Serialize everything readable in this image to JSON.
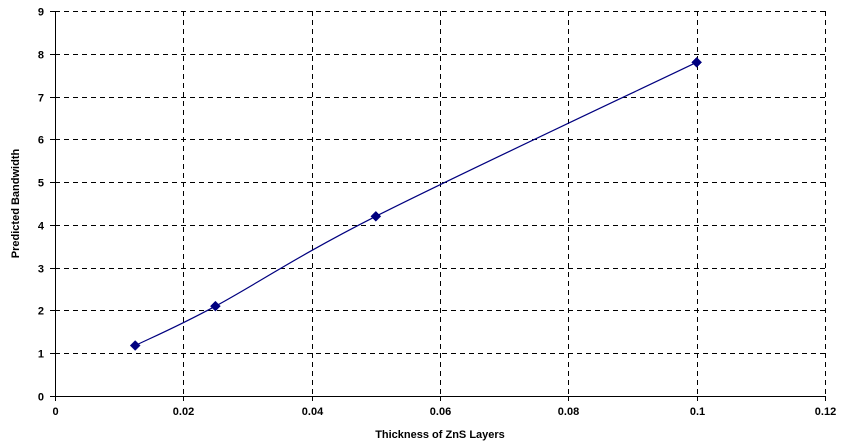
{
  "chart_data": {
    "type": "line",
    "title": "",
    "xlabel": "Thickness of ZnS Layers",
    "ylabel": "Predicted Bandwidth",
    "xlim": [
      0,
      0.12
    ],
    "ylim": [
      0,
      9
    ],
    "x_ticks": [
      0,
      0.02,
      0.04,
      0.06,
      0.08,
      0.1,
      0.12
    ],
    "x_tick_labels": [
      "0",
      "0.02",
      "0.04",
      "0.06",
      "0.08",
      "0.1",
      "0.12"
    ],
    "y_ticks": [
      0,
      1,
      2,
      3,
      4,
      5,
      6,
      7,
      8,
      9
    ],
    "y_tick_labels": [
      "0",
      "1",
      "2",
      "3",
      "4",
      "5",
      "6",
      "7",
      "8",
      "9"
    ],
    "grid": true,
    "legend": "none",
    "series": [
      {
        "x": [
          0.0125,
          0.025,
          0.05,
          0.1
        ],
        "y": [
          1.18,
          2.1,
          4.2,
          7.8
        ],
        "color": "#00007f",
        "marker": "diamond"
      }
    ]
  }
}
